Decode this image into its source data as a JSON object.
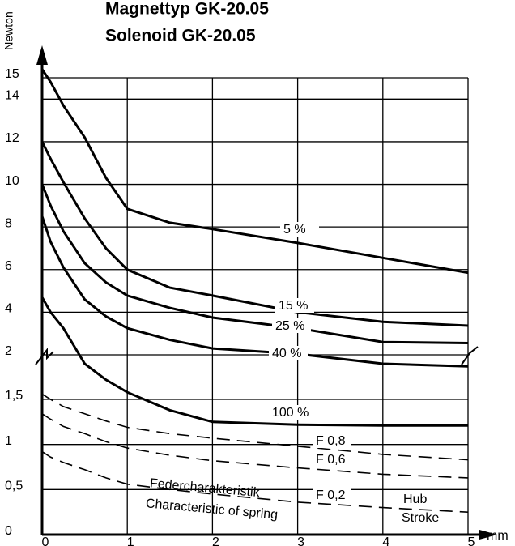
{
  "chart_data": {
    "type": "line",
    "title": "Magnettyp GK-20.05",
    "subtitle": "Solenoid GK-20.05",
    "y_label": "Newton",
    "x_label": "mm",
    "annotations": [
      "Federcharakteristik",
      "Characteristic of spring",
      "Hub",
      "Stroke"
    ],
    "x": [
      0,
      0.1,
      0.25,
      0.5,
      0.75,
      1,
      1.5,
      2,
      3,
      4,
      5
    ],
    "xlim": [
      0,
      5
    ],
    "xticks": [
      0,
      1,
      2,
      3,
      4,
      5
    ],
    "ylim": [
      0,
      15
    ],
    "y_break": [
      1.5,
      2
    ],
    "yticks": [
      0,
      {
        "value": 0.5,
        "label": "0,5"
      },
      1,
      {
        "value": 1.5,
        "label": "1,5"
      },
      2,
      4,
      6,
      8,
      10,
      12,
      14,
      15
    ],
    "grid": true,
    "series": [
      {
        "name": "5 %",
        "color": "#000000",
        "values": [
          15.4,
          14.8,
          13.7,
          12.2,
          10.3,
          8.85,
          8.2,
          7.9,
          7.25,
          6.55,
          5.85
        ]
      },
      {
        "name": "15 %",
        "color": "#000000",
        "values": [
          12,
          11.2,
          10.1,
          8.4,
          7.0,
          6.0,
          5.15,
          4.78,
          4.0,
          3.55,
          3.37
        ]
      },
      {
        "name": "25 %",
        "color": "#000000",
        "values": [
          10,
          9.0,
          7.8,
          6.3,
          5.4,
          4.78,
          4.2,
          3.75,
          3.25,
          2.6,
          2.55
        ]
      },
      {
        "name": "40 %",
        "color": "#000000",
        "values": [
          8.5,
          7.3,
          6.1,
          4.6,
          3.8,
          3.25,
          2.7,
          2.3,
          2.04,
          1.9,
          1.87
        ]
      },
      {
        "name": "100 %",
        "color": "#000000",
        "values": [
          4.7,
          4.0,
          3.25,
          1.9,
          1.72,
          1.58,
          1.38,
          1.25,
          1.22,
          1.21,
          1.21
        ]
      },
      {
        "name": "F 0,8",
        "color": "#000000",
        "dashed": true,
        "values": [
          1.56,
          1.5,
          1.42,
          1.34,
          1.26,
          1.19,
          1.12,
          1.07,
          0.98,
          0.89,
          0.83
        ]
      },
      {
        "name": "F 0,6",
        "color": "#000000",
        "dashed": true,
        "values": [
          1.34,
          1.28,
          1.2,
          1.12,
          1.03,
          0.96,
          0.88,
          0.82,
          0.74,
          0.67,
          0.63
        ]
      },
      {
        "name": "F 0,2",
        "color": "#000000",
        "dashed": true,
        "values": [
          0.92,
          0.86,
          0.8,
          0.72,
          0.63,
          0.56,
          0.5,
          0.45,
          0.36,
          0.3,
          0.25
        ]
      }
    ]
  }
}
